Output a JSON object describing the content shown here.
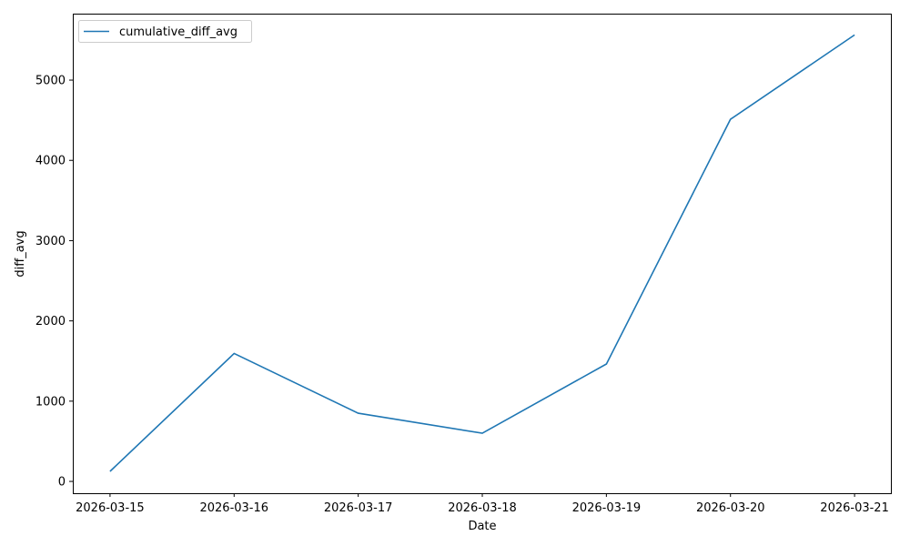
{
  "chart_data": {
    "type": "line",
    "title": "",
    "xlabel": "Date",
    "ylabel": "diff_avg",
    "x": [
      "2026-03-15",
      "2026-03-16",
      "2026-03-17",
      "2026-03-18",
      "2026-03-19",
      "2026-03-20",
      "2026-03-21"
    ],
    "series": [
      {
        "name": "cumulative_diff_avg",
        "color": "#1f77b4",
        "values": [
          125,
          1595,
          850,
          600,
          1463,
          4512,
          5563
        ]
      }
    ],
    "yticks": [
      0,
      1000,
      2000,
      3000,
      4000,
      5000
    ],
    "ylim": [
      -147,
      5828
    ],
    "grid": false,
    "legend": "top-left"
  }
}
